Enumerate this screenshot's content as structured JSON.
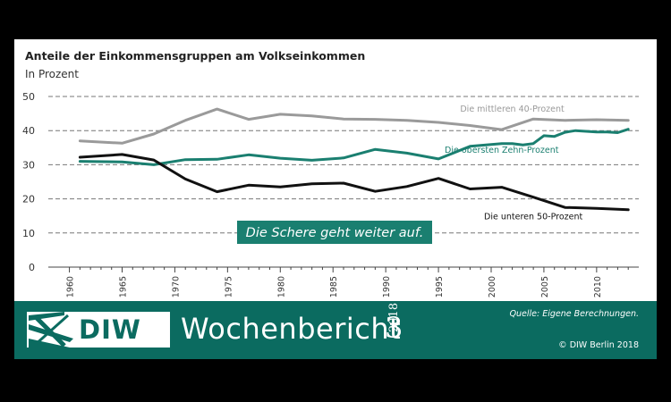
{
  "chart_data": {
    "type": "line",
    "title": "Anteile der Einkommensgruppen am Volkseinkommen",
    "subtitle": "In Prozent",
    "ylim": [
      0,
      50
    ],
    "yticks": [
      0,
      10,
      20,
      30,
      40,
      50
    ],
    "xlim": [
      1958,
      2014
    ],
    "xticks": [
      1960,
      1965,
      1970,
      1975,
      1980,
      1985,
      1990,
      1995,
      2000,
      2005,
      2010
    ],
    "grid": "horizontal-dashed",
    "annotation": "Die Schere geht weiter auf.",
    "series": [
      {
        "name": "Die mittleren 40-Prozent",
        "color": "#9a9a9a",
        "x": [
          1961,
          1965,
          1968,
          1971,
          1974,
          1977,
          1980,
          1983,
          1986,
          1989,
          1992,
          1995,
          1998,
          2001,
          2004,
          2007,
          2010,
          2013
        ],
        "values": [
          37.0,
          36.3,
          39.0,
          43.0,
          46.3,
          43.3,
          44.8,
          44.3,
          43.4,
          43.3,
          43.0,
          42.4,
          41.5,
          40.3,
          43.4,
          43.0,
          43.2,
          43.0
        ]
      },
      {
        "name": "Die obersten Zehn-Prozent",
        "color": "#1a7f70",
        "x": [
          1961,
          1965,
          1968,
          1971,
          1974,
          1977,
          1980,
          1983,
          1986,
          1989,
          1992,
          1995,
          1998,
          2001,
          2002,
          2003,
          2004,
          2005,
          2006,
          2007,
          2008,
          2009,
          2010,
          2011,
          2012,
          2013
        ],
        "values": [
          31.0,
          30.8,
          30.0,
          31.5,
          31.6,
          32.9,
          31.9,
          31.3,
          32.0,
          34.5,
          33.4,
          31.7,
          35.4,
          36.2,
          36.2,
          35.8,
          36.2,
          38.5,
          38.3,
          39.5,
          40.0,
          39.8,
          39.6,
          39.6,
          39.4,
          40.4
        ]
      },
      {
        "name": "Die unteren 50-Prozent",
        "color": "#111111",
        "x": [
          1961,
          1965,
          1968,
          1971,
          1974,
          1977,
          1980,
          1983,
          1986,
          1989,
          1992,
          1995,
          1998,
          2001,
          2004,
          2007,
          2010,
          2013
        ],
        "values": [
          32.2,
          33.0,
          31.4,
          25.8,
          22.1,
          24.0,
          23.5,
          24.4,
          24.6,
          22.2,
          23.6,
          26.0,
          22.9,
          23.4,
          20.5,
          17.5,
          17.2,
          16.8
        ]
      }
    ]
  },
  "footer": {
    "logo_text": "DIW",
    "publication": "Wochenbericht",
    "issue": "3",
    "year": "2018",
    "source": "Quelle: Eigene Berechnungen.",
    "copyright": "© DIW Berlin 2018"
  },
  "colors": {
    "brand": "#0b6b60",
    "grid": "#777777",
    "callout_bg": "#1a7f70"
  }
}
